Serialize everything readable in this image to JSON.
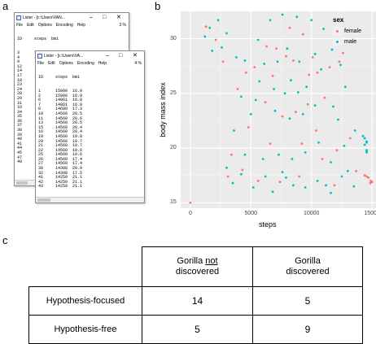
{
  "panels": {
    "a": "a",
    "b": "b",
    "c": "c"
  },
  "window_back": {
    "title": "Lister - [c:\\Users\\VAN...",
    "menu": [
      "File",
      "Edit",
      "Options",
      "Encoding",
      "Help"
    ],
    "zoom": "3 %",
    "header": [
      "ID",
      "steps",
      "bmi"
    ],
    "rows": [
      [
        "3",
        "15000",
        "17.0"
      ],
      [
        "4",
        "14861",
        "17.2"
      ],
      [
        "9",
        "",
        ""
      ],
      [
        "12",
        "",
        ""
      ],
      [
        "14",
        "",
        ""
      ],
      [
        "17",
        "",
        ""
      ],
      [
        "18",
        "",
        ""
      ],
      [
        "23",
        "",
        ""
      ],
      [
        "24",
        "",
        ""
      ],
      [
        "28",
        "",
        ""
      ],
      [
        "29",
        "",
        ""
      ],
      [
        "31",
        "",
        ""
      ],
      [
        "33",
        "",
        ""
      ],
      [
        "34",
        "",
        ""
      ],
      [
        "35",
        "",
        ""
      ],
      [
        "36",
        "",
        ""
      ],
      [
        "37",
        "",
        ""
      ],
      [
        "38",
        "",
        ""
      ],
      [
        "39",
        "",
        ""
      ],
      [
        "40",
        "",
        ""
      ],
      [
        "41",
        "",
        ""
      ],
      [
        "44",
        "",
        ""
      ],
      [
        "45",
        "",
        ""
      ],
      [
        "47",
        "",
        ""
      ],
      [
        "48",
        "",
        ""
      ]
    ]
  },
  "window_front": {
    "title": "Lister - [c:\\Users\\VA...",
    "menu": [
      "File",
      "Edit",
      "Options",
      "Encoding",
      "Help"
    ],
    "zoom": "4 %",
    "header": [
      "ID",
      "steps",
      "bmi"
    ],
    "rows": [
      [
        "1",
        "15000",
        "16.9"
      ],
      [
        "2",
        "15000",
        "16.9"
      ],
      [
        "6",
        "14861",
        "16.8"
      ],
      [
        "7",
        "14861",
        "16.8"
      ],
      [
        "8",
        "14699",
        "17.3"
      ],
      [
        "10",
        "14560",
        "20.5"
      ],
      [
        "11",
        "14560",
        "20.6"
      ],
      [
        "13",
        "14560",
        "20.5"
      ],
      [
        "15",
        "14560",
        "20.4"
      ],
      [
        "16",
        "14560",
        "20.4"
      ],
      [
        "19",
        "14560",
        "19.8"
      ],
      [
        "20",
        "14560",
        "19.7"
      ],
      [
        "21",
        "14560",
        "19.7"
      ],
      [
        "22",
        "14560",
        "19.6"
      ],
      [
        "25",
        "14560",
        "19.6"
      ],
      [
        "26",
        "14560",
        "17.4"
      ],
      [
        "27",
        "14560",
        "17.4"
      ],
      [
        "30",
        "14398",
        "20.9"
      ],
      [
        "32",
        "14398",
        "17.5"
      ],
      [
        "41",
        "14259",
        "21.1"
      ],
      [
        "42",
        "14259",
        "21.1"
      ],
      [
        "43",
        "14259",
        "21.1"
      ]
    ]
  },
  "chart_data": {
    "type": "scatter",
    "xlabel": "steps",
    "ylabel": "body mass index",
    "xticks": [
      "0",
      "5000",
      "10000",
      "15000"
    ],
    "yticks": [
      "15",
      "20",
      "25",
      "30"
    ],
    "xlim": [
      -800,
      15600
    ],
    "ylim": [
      14.5,
      32.5
    ],
    "grid": true,
    "legend": {
      "title": "sex",
      "position": "right",
      "entries": [
        "female",
        "male"
      ]
    },
    "colors": {
      "female": "#f8766d",
      "male": "#00bfc4"
    },
    "series": [
      {
        "name": "female",
        "points": [
          [
            0,
            15.0
          ],
          [
            2100,
            29.9
          ],
          [
            4600,
            26.9
          ],
          [
            5300,
            27.4
          ],
          [
            6300,
            29.3
          ],
          [
            7100,
            29.1
          ],
          [
            8200,
            31.0
          ],
          [
            9300,
            30.4
          ],
          [
            10100,
            28.3
          ],
          [
            10500,
            26.9
          ],
          [
            11500,
            27.4
          ],
          [
            12300,
            27.9
          ],
          [
            6200,
            24.2
          ],
          [
            7600,
            22.9
          ],
          [
            8700,
            23.3
          ],
          [
            9700,
            24.0
          ],
          [
            3400,
            19.4
          ],
          [
            4300,
            18.0
          ],
          [
            10900,
            19.0
          ],
          [
            12100,
            19.8
          ],
          [
            13200,
            20.9
          ],
          [
            14900,
            17.0
          ],
          [
            15000,
            16.9
          ],
          [
            14861,
            16.8
          ],
          [
            14699,
            17.3
          ],
          [
            14560,
            17.4
          ],
          [
            14398,
            17.5
          ],
          [
            3100,
            17.4
          ],
          [
            5600,
            17.0
          ],
          [
            7400,
            16.9
          ],
          [
            9000,
            17.4
          ],
          [
            11900,
            16.6
          ],
          [
            13700,
            17.9
          ],
          [
            2700,
            27.9
          ],
          [
            1300,
            31.1
          ],
          [
            6800,
            26.6
          ],
          [
            9800,
            26.7
          ],
          [
            7900,
            28.4
          ],
          [
            8500,
            28.0
          ],
          [
            12600,
            28.7
          ],
          [
            3900,
            25.4
          ],
          [
            11100,
            24.6
          ],
          [
            4800,
            21.9
          ],
          [
            10400,
            21.6
          ],
          [
            6600,
            20.4
          ],
          [
            9200,
            20.4
          ]
        ]
      },
      {
        "name": "male",
        "points": [
          [
            1200,
            30.2
          ],
          [
            1800,
            28.9
          ],
          [
            3000,
            30.5
          ],
          [
            3800,
            28.3
          ],
          [
            4500,
            28.0
          ],
          [
            5600,
            29.9
          ],
          [
            6600,
            31.7
          ],
          [
            7600,
            32.2
          ],
          [
            8800,
            32.0
          ],
          [
            10000,
            31.7
          ],
          [
            11000,
            30.9
          ],
          [
            11700,
            29.0
          ],
          [
            12400,
            27.6
          ],
          [
            12800,
            25.6
          ],
          [
            5700,
            26.1
          ],
          [
            6100,
            27.7
          ],
          [
            7200,
            27.9
          ],
          [
            8000,
            29.1
          ],
          [
            9000,
            27.9
          ],
          [
            10300,
            28.6
          ],
          [
            10800,
            27.2
          ],
          [
            7000,
            23.4
          ],
          [
            8200,
            22.7
          ],
          [
            9300,
            23.1
          ],
          [
            10300,
            23.9
          ],
          [
            5400,
            24.4
          ],
          [
            3600,
            21.6
          ],
          [
            4500,
            19.4
          ],
          [
            10600,
            20.5
          ],
          [
            11600,
            18.7
          ],
          [
            12700,
            20.2
          ],
          [
            13600,
            21.6
          ],
          [
            14400,
            20.3
          ],
          [
            14560,
            20.5
          ],
          [
            14560,
            20.6
          ],
          [
            14560,
            19.8
          ],
          [
            14560,
            19.7
          ],
          [
            14560,
            19.6
          ],
          [
            14398,
            20.9
          ],
          [
            14259,
            21.1
          ],
          [
            3000,
            18.2
          ],
          [
            3500,
            16.8
          ],
          [
            5200,
            16.4
          ],
          [
            6200,
            17.4
          ],
          [
            7600,
            17.8
          ],
          [
            8500,
            16.6
          ],
          [
            9500,
            16.4
          ],
          [
            10500,
            17.0
          ],
          [
            11200,
            16.6
          ],
          [
            12500,
            17.4
          ],
          [
            13500,
            16.5
          ],
          [
            6000,
            19.0
          ],
          [
            7300,
            19.4
          ],
          [
            8400,
            19.0
          ],
          [
            9500,
            19.6
          ],
          [
            2300,
            31.7
          ],
          [
            1600,
            31.0
          ],
          [
            2600,
            29.2
          ],
          [
            4200,
            24.7
          ],
          [
            5000,
            23.1
          ],
          [
            11800,
            23.8
          ],
          [
            12200,
            22.6
          ],
          [
            6900,
            25.4
          ],
          [
            9600,
            25.6
          ],
          [
            8300,
            26.2
          ],
          [
            7800,
            25.0
          ],
          [
            8900,
            25.1
          ],
          [
            11600,
            15.9
          ],
          [
            6800,
            16.0
          ],
          [
            7900,
            17.3
          ],
          [
            4200,
            17.6
          ],
          [
            13000,
            17.9
          ]
        ]
      }
    ]
  },
  "table": {
    "col_headers": [
      "Gorilla not discovered",
      "Gorilla discovered"
    ],
    "col_header_lines": [
      [
        "Gorilla",
        "not",
        "discovered"
      ],
      [
        "Gorilla",
        "discovered"
      ]
    ],
    "rows": [
      {
        "label": "Hypothesis-focused",
        "values": [
          "14",
          "5"
        ]
      },
      {
        "label": "Hypothesis-free",
        "values": [
          "5",
          "9"
        ]
      }
    ]
  }
}
